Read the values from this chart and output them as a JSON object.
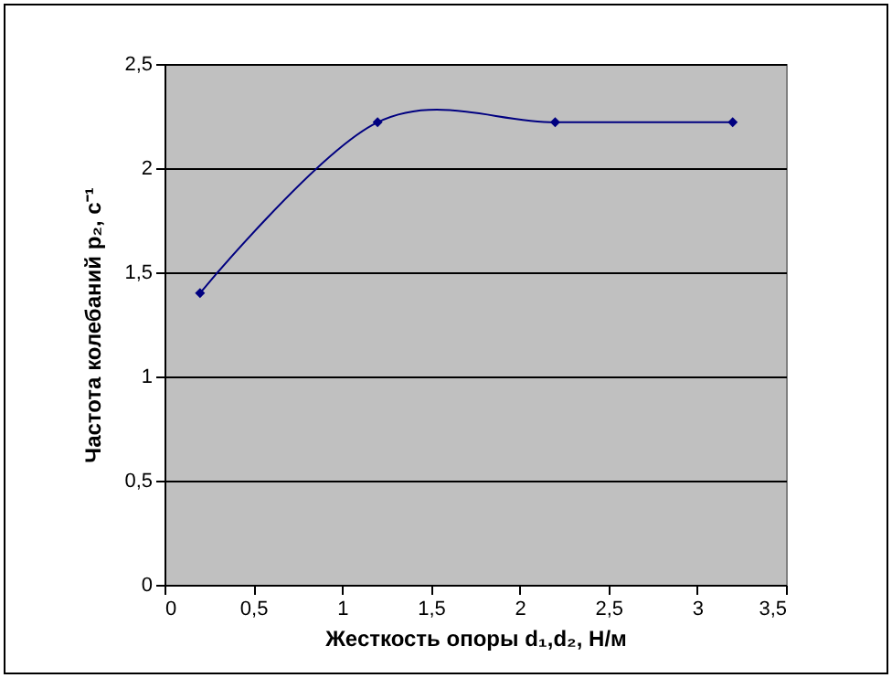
{
  "chart_data": {
    "type": "line",
    "xlabel": "Жесткость опоры d₁,d₂, Н/м",
    "ylabel": "Частота колебаний p₂, с⁻¹",
    "x": [
      0.2,
      1.2,
      2.2,
      3.2
    ],
    "series": [
      {
        "color": "#000080",
        "values": [
          1.4,
          2.22,
          2.22,
          2.22
        ]
      }
    ],
    "xlim": [
      0,
      3.5
    ],
    "xticks": [
      {
        "value": 0,
        "label": "0"
      },
      {
        "value": 0.5,
        "label": "0,5"
      },
      {
        "value": 1,
        "label": "1"
      },
      {
        "value": 1.5,
        "label": "1,5"
      },
      {
        "value": 2,
        "label": "2"
      },
      {
        "value": 2.5,
        "label": "2,5"
      },
      {
        "value": 3,
        "label": "3"
      },
      {
        "value": 3.5,
        "label": "3,5"
      }
    ],
    "ylim": [
      0,
      2.5
    ],
    "yticks": [
      {
        "value": 0,
        "label": "0"
      },
      {
        "value": 0.5,
        "label": "0,5"
      },
      {
        "value": 1,
        "label": "1"
      },
      {
        "value": 1.5,
        "label": "1,5"
      },
      {
        "value": 2,
        "label": "2"
      },
      {
        "value": 2.5,
        "label": "2,5"
      }
    ],
    "grid": "y",
    "marker": "diamond",
    "line_style": "solid"
  }
}
